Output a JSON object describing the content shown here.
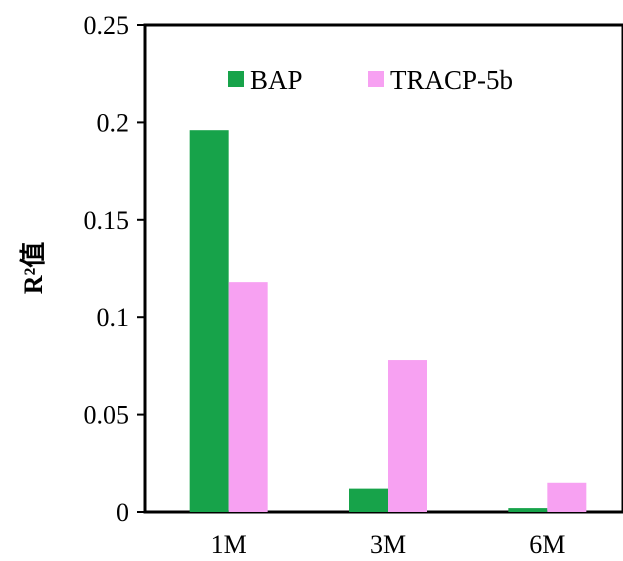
{
  "chart_data": {
    "type": "bar",
    "categories": [
      "1M",
      "3M",
      "6M"
    ],
    "series": [
      {
        "name": "BAP",
        "values": [
          0.196,
          0.012,
          0.002
        ],
        "color": "#17A34A"
      },
      {
        "name": "TRACP-5b",
        "values": [
          0.118,
          0.078,
          0.015
        ],
        "color": "#F7A1F2"
      }
    ],
    "y_ticks": [
      "0",
      "0.05",
      "0.1",
      "0.15",
      "0.2",
      "0.25"
    ],
    "ylim": [
      0,
      0.25
    ],
    "ylabel": "R²值",
    "xlabel": "",
    "grid": false,
    "legend": "top"
  }
}
